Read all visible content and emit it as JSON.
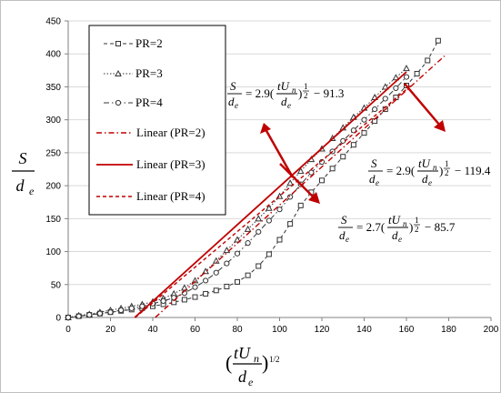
{
  "chart_data": {
    "type": "scatter",
    "title": "",
    "xlabel": {
      "numerator": "tU",
      "subscript_n": "n",
      "denominator": "d",
      "subscript_e": "e",
      "exponent": "1/2"
    },
    "ylabel": {
      "numerator": "S",
      "denominator": "d",
      "subscript_e": "e"
    },
    "xlim": [
      0,
      200
    ],
    "ylim": [
      0,
      450
    ],
    "xticks": [
      "0",
      "20",
      "40",
      "60",
      "80",
      "100",
      "120",
      "140",
      "160",
      "180",
      "200"
    ],
    "yticks": [
      "0",
      "50",
      "100",
      "150",
      "200",
      "250",
      "300",
      "350",
      "400",
      "450"
    ],
    "grid": true,
    "legend_position": "top-left",
    "series": [
      {
        "name": "PR=2",
        "marker": "square",
        "line": "dashed",
        "color": "#333333",
        "x": [
          0,
          5,
          10,
          15,
          20,
          25,
          30,
          35,
          40,
          45,
          50,
          55,
          60,
          65,
          70,
          75,
          80,
          85,
          90,
          95,
          100,
          105,
          110,
          115,
          120,
          125,
          130,
          135,
          140,
          145,
          150,
          155,
          160,
          165,
          170,
          175
        ],
        "y": [
          0,
          2,
          4,
          6,
          8,
          10,
          12,
          14,
          17,
          20,
          23,
          27,
          31,
          36,
          41,
          47,
          54,
          64,
          78,
          96,
          118,
          142,
          170,
          190,
          208,
          226,
          244,
          262,
          280,
          298,
          316,
          334,
          352,
          370,
          390,
          420
        ]
      },
      {
        "name": "PR=3",
        "marker": "triangle",
        "line": "dotted",
        "color": "#333333",
        "x": [
          0,
          5,
          10,
          15,
          20,
          25,
          30,
          35,
          40,
          45,
          50,
          55,
          60,
          65,
          70,
          75,
          80,
          85,
          90,
          95,
          100,
          105,
          110,
          115,
          120,
          125,
          130,
          135,
          140,
          145,
          150,
          155,
          160
        ],
        "y": [
          0,
          3,
          5,
          8,
          11,
          14,
          17,
          20,
          24,
          29,
          36,
          45,
          56,
          70,
          86,
          102,
          118,
          134,
          150,
          166,
          184,
          204,
          222,
          240,
          256,
          272,
          288,
          304,
          318,
          334,
          350,
          364,
          378
        ]
      },
      {
        "name": "PR=4",
        "marker": "circle",
        "line": "dash-dot",
        "color": "#333333",
        "x": [
          0,
          5,
          10,
          15,
          20,
          25,
          30,
          35,
          40,
          45,
          50,
          55,
          60,
          65,
          70,
          75,
          80,
          85,
          90,
          95,
          100,
          105,
          110,
          115,
          120,
          125,
          130,
          135,
          140,
          145,
          150,
          155,
          160
        ],
        "y": [
          0,
          2,
          4,
          6,
          8,
          11,
          14,
          17,
          21,
          25,
          30,
          37,
          46,
          56,
          68,
          82,
          97,
          113,
          130,
          147,
          164,
          183,
          202,
          220,
          236,
          252,
          268,
          284,
          300,
          316,
          332,
          348,
          365
        ]
      },
      {
        "name": "Linear (PR=2)",
        "line": "dash-dot",
        "color": "#c00000",
        "trend": {
          "slope": 2.9,
          "intercept": -119.4
        },
        "x_range": [
          41.2,
          178
        ]
      },
      {
        "name": "Linear (PR=3)",
        "line": "solid",
        "color": "#c00000",
        "trend": {
          "slope": 2.9,
          "intercept": -91.3
        },
        "x_range": [
          31.5,
          160
        ]
      },
      {
        "name": "Linear (PR=4)",
        "line": "dashed",
        "color": "#c00000",
        "trend": {
          "slope": 2.7,
          "intercept": -85.7
        },
        "x_range": [
          31.7,
          162
        ]
      }
    ],
    "annotations": [
      {
        "id": "eq_pr3",
        "lhs_num": "S",
        "lhs_den": "d",
        "lhs_sub": "e",
        "coef": "2.9",
        "rhs_num": "tU",
        "rhs_sub_n": "n",
        "rhs_den": "d",
        "rhs_sub_e": "e",
        "exponent_num": "1",
        "exponent_den": "2",
        "constant": "− 91.3"
      },
      {
        "id": "eq_pr2",
        "lhs_num": "S",
        "lhs_den": "d",
        "lhs_sub": "e",
        "coef": "2.9",
        "rhs_num": "tU",
        "rhs_sub_n": "n",
        "rhs_den": "d",
        "rhs_sub_e": "e",
        "exponent_num": "1",
        "exponent_den": "2",
        "constant": "− 119.4"
      },
      {
        "id": "eq_pr4",
        "lhs_num": "S",
        "lhs_den": "d",
        "lhs_sub": "e",
        "coef": "2.7",
        "rhs_num": "tU",
        "rhs_sub_n": "n",
        "rhs_den": "d",
        "rhs_sub_e": "e",
        "exponent_num": "1",
        "exponent_den": "2",
        "constant": "− 85.7"
      }
    ]
  }
}
